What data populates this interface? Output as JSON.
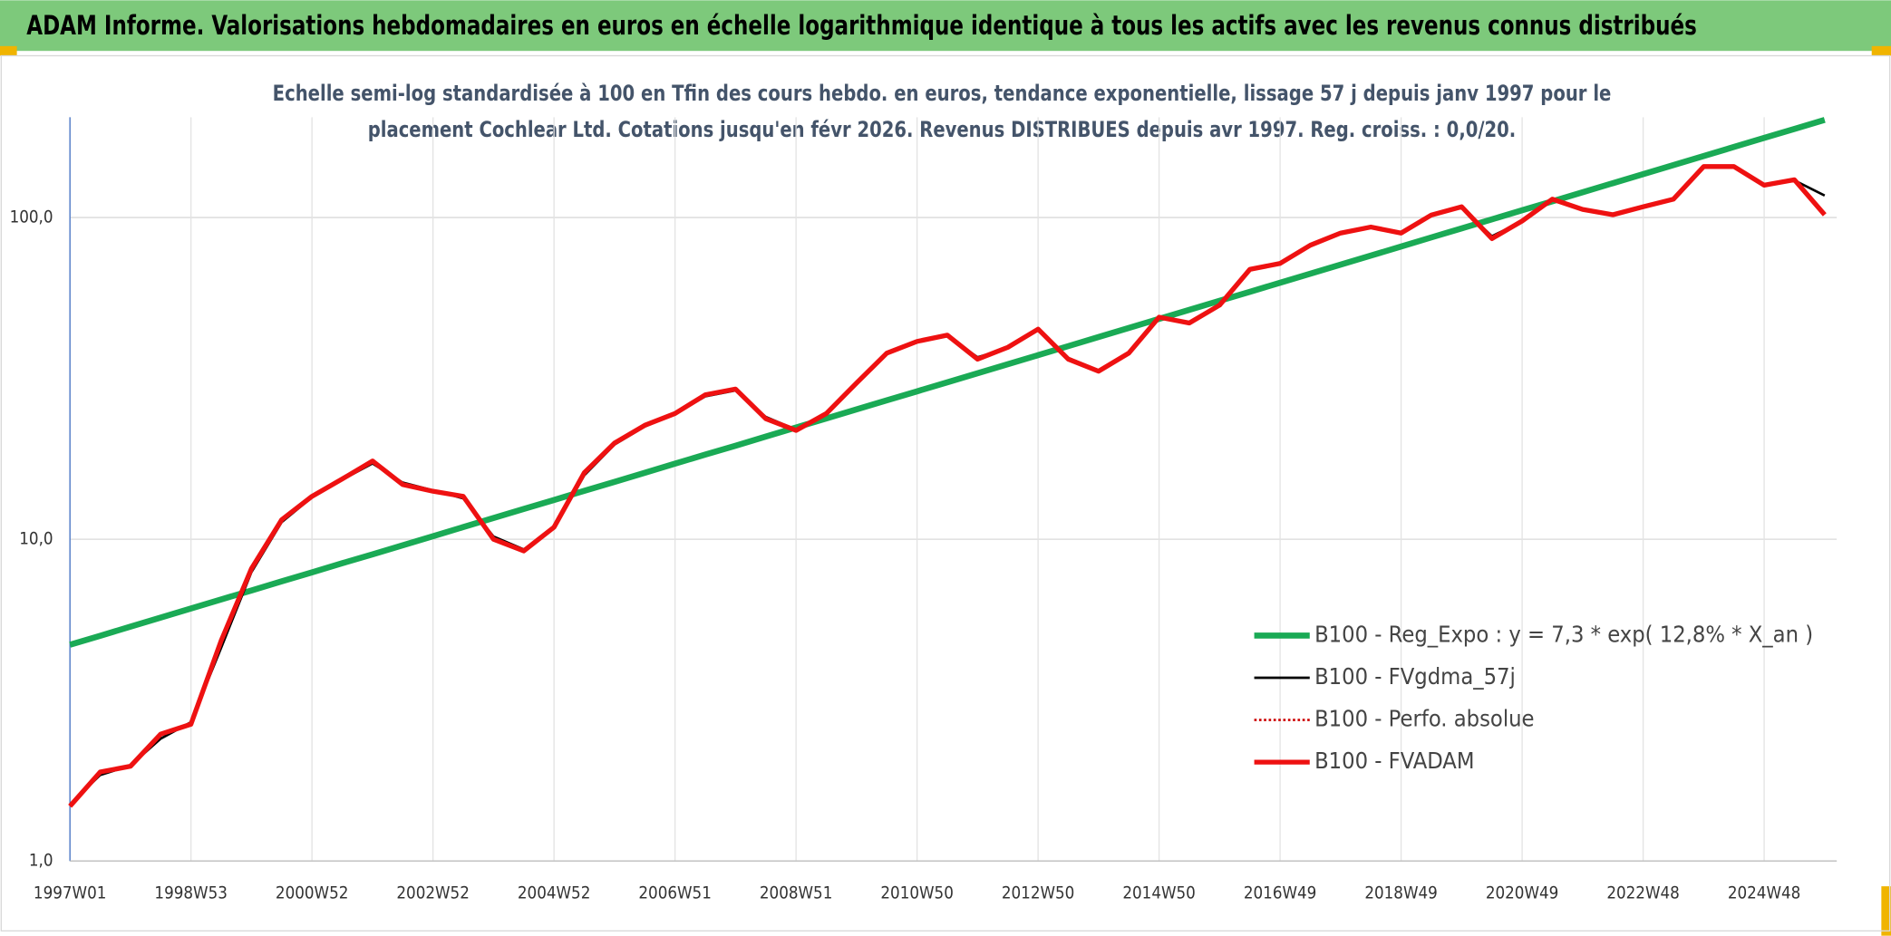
{
  "chart_data": {
    "type": "line",
    "title": "ADAM Informe. Valorisations hebdomadaires en euros en échelle logarithmique identique à tous les actifs avec les revenus connus distribués",
    "subtitle": [
      "Echelle semi-log standardisée à 100 en Tfin des cours hebdo. en euros, tendance exponentielle, lissage 57 j depuis janv 1997 pour le",
      "placement Cochlear Ltd. Cotations jusqu'en févr 2026. Revenus DISTRIBUES depuis avr 1997. Reg. croiss. : 0,0/20."
    ],
    "log_scale": true,
    "grid": true,
    "legend": "lower right",
    "categories": [
      "1997W01",
      null,
      null,
      null,
      "1998W53",
      null,
      null,
      null,
      "2000W52",
      null,
      null,
      null,
      "2002W52",
      null,
      null,
      null,
      "2004W52",
      null,
      null,
      null,
      "2006W51",
      null,
      null,
      null,
      "2008W51",
      null,
      null,
      null,
      "2010W50",
      null,
      null,
      null,
      "2012W50",
      null,
      null,
      null,
      "2014W50",
      null,
      null,
      null,
      "2016W49",
      null,
      null,
      null,
      "2018W49",
      null,
      null,
      null,
      "2020W49",
      null,
      null,
      null,
      "2022W48",
      null,
      null,
      null,
      "2024W48",
      null,
      null
    ],
    "ylim": [
      1,
      205
    ],
    "yticks": [
      {
        "value": 1,
        "label": "1,0"
      },
      {
        "value": 10,
        "label": "10,0"
      },
      {
        "value": 100,
        "label": "100,0"
      }
    ],
    "series": [
      {
        "name": "B100 - Reg_Expo : y = 7,3 * exp( 12,8% *  X_an )",
        "color": "#1aaa55",
        "style": "solid",
        "width": 5,
        "values": [
          4.7,
          5.01,
          5.35,
          5.71,
          6.09,
          6.5,
          6.93,
          7.4,
          7.89,
          8.42,
          8.98,
          9.58,
          10.22,
          10.91,
          11.64,
          12.42,
          13.25,
          14.14,
          15.08,
          16.09,
          17.17,
          18.32,
          19.54,
          20.85,
          22.25,
          23.74,
          25.32,
          27.02,
          28.83,
          30.76,
          32.81,
          35.01,
          37.35,
          39.85,
          42.52,
          45.36,
          48.4,
          51.64,
          55.09,
          58.78,
          62.71,
          66.91,
          71.38,
          76.16,
          81.26,
          86.7,
          92.5,
          98.69,
          105.3,
          112.3,
          119.8,
          127.9,
          136.4,
          145.5,
          155.3,
          165.7,
          176.8,
          188.6,
          201.2
        ]
      },
      {
        "name": "B100 - FVgdma_57j",
        "color": "#000000",
        "style": "solid",
        "width": 2,
        "values": [
          1.5,
          1.85,
          1.98,
          2.4,
          2.7,
          4.6,
          7.9,
          11.3,
          13.5,
          15.3,
          17.2,
          15.0,
          14.2,
          13.4,
          10.2,
          9.3,
          10.8,
          15.8,
          19.7,
          22.4,
          24.5,
          27.8,
          29.0,
          24.0,
          21.9,
          24.5,
          30.4,
          37.6,
          41.0,
          42.8,
          36.8,
          39.3,
          44.6,
          36.6,
          33.5,
          37.7,
          48.6,
          47.2,
          53.2,
          68.5,
          72.0,
          81.5,
          89.2,
          93.0,
          89.8,
          101.2,
          107.5,
          87.5,
          97.2,
          113.5,
          106.2,
          102.3,
          108.2,
          113.8,
          143.0,
          143.5,
          126.5,
          130.5,
          117.0
        ]
      },
      {
        "name": "B100 - Perfo. absolue",
        "color": "#cc0000",
        "style": "dotted",
        "width": 2,
        "values": [
          1.48,
          1.89,
          1.97,
          2.48,
          2.66,
          4.84,
          8.1,
          11.5,
          13.6,
          15.4,
          17.5,
          14.8,
          14.1,
          13.6,
          10.0,
          9.2,
          10.9,
          16.1,
          19.9,
          22.6,
          24.6,
          28.1,
          29.3,
          23.7,
          21.8,
          24.6,
          30.6,
          37.9,
          41.2,
          43.1,
          36.3,
          39.5,
          45.0,
          36.3,
          33.3,
          37.9,
          49.0,
          47.0,
          53.4,
          69.0,
          72.0,
          82.0,
          89.5,
          93.4,
          89.5,
          101.8,
          108,
          86,
          97.5,
          114,
          106,
          102,
          108,
          114,
          144,
          144,
          126,
          131,
          102
        ]
      },
      {
        "name": "B100 - FVADAM",
        "color": "#ee1111",
        "style": "solid",
        "width": 4,
        "values": [
          1.48,
          1.89,
          1.97,
          2.48,
          2.66,
          4.84,
          8.1,
          11.5,
          13.6,
          15.4,
          17.5,
          14.8,
          14.1,
          13.6,
          10.0,
          9.2,
          10.9,
          16.1,
          19.9,
          22.6,
          24.6,
          28.1,
          29.3,
          23.7,
          21.8,
          24.6,
          30.6,
          37.9,
          41.2,
          43.1,
          36.3,
          39.5,
          45.0,
          36.3,
          33.3,
          37.9,
          49.0,
          47.0,
          53.4,
          69.0,
          72.0,
          82.0,
          89.5,
          93.4,
          89.5,
          101.8,
          108,
          86,
          97.5,
          114,
          106,
          102,
          108,
          114,
          144,
          144,
          126,
          131,
          102
        ]
      }
    ]
  }
}
